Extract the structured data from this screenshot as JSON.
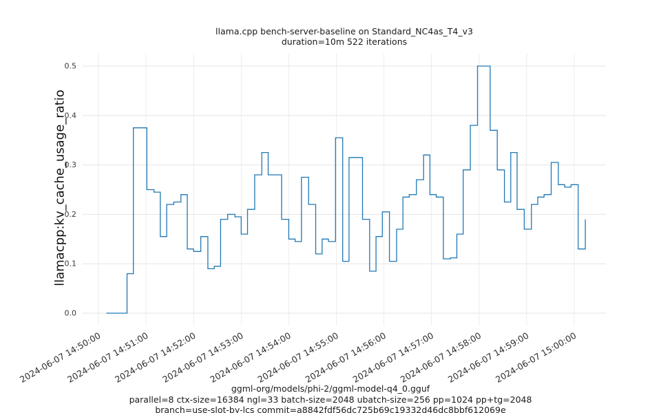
{
  "figure": {
    "title_line1": "llama.cpp bench-server-baseline on Standard_NC4as_T4_v3",
    "title_line2": "duration=10m 522 iterations",
    "ylabel": "llamacpp:kv_cache_usage_ratio",
    "footer_line1": "ggml-org/models/phi-2/ggml-model-q4_0.gguf",
    "footer_line2": "parallel=8 ctx-size=16384 ngl=33 batch-size=2048 ubatch-size=256 pp=1024 pp+tg=2048",
    "footer_line3": "branch=use-slot-by-lcs commit=a8842fdf56dc725b69c19332d46dc8bbf612069e"
  },
  "chart_data": {
    "type": "line",
    "step_style": "post",
    "title": "llama.cpp bench-server-baseline on Standard_NC4as_T4_v3 duration=10m 522 iterations",
    "xlabel": "",
    "ylabel": "llamacpp:kv_cache_usage_ratio",
    "line_color": "#1f77b4",
    "grid": true,
    "legend": "none",
    "ylim": [
      -0.025,
      0.525
    ],
    "xlim_seconds": [
      -20,
      640
    ],
    "y_ticks": [
      0.0,
      0.1,
      0.2,
      0.3,
      0.4,
      0.5
    ],
    "x_ticks": [
      {
        "t": 0,
        "label": "2024-06-07 14:50:00"
      },
      {
        "t": 60,
        "label": "2024-06-07 14:51:00"
      },
      {
        "t": 120,
        "label": "2024-06-07 14:52:00"
      },
      {
        "t": 180,
        "label": "2024-06-07 14:53:00"
      },
      {
        "t": 240,
        "label": "2024-06-07 14:54:00"
      },
      {
        "t": 300,
        "label": "2024-06-07 14:55:00"
      },
      {
        "t": 360,
        "label": "2024-06-07 14:56:00"
      },
      {
        "t": 420,
        "label": "2024-06-07 14:57:00"
      },
      {
        "t": 480,
        "label": "2024-06-07 14:58:00"
      },
      {
        "t": 540,
        "label": "2024-06-07 14:59:00"
      },
      {
        "t": 600,
        "label": "2024-06-07 15:00:00"
      }
    ],
    "x_seconds": [
      10,
      18,
      27,
      36,
      44,
      52,
      61,
      70,
      78,
      86,
      95,
      104,
      112,
      120,
      129,
      138,
      146,
      154,
      163,
      172,
      180,
      188,
      197,
      206,
      214,
      222,
      231,
      240,
      248,
      256,
      265,
      274,
      282,
      290,
      299,
      308,
      316,
      324,
      333,
      342,
      350,
      358,
      367,
      376,
      384,
      392,
      401,
      410,
      418,
      426,
      435,
      444,
      452,
      460,
      469,
      478,
      486,
      494,
      503,
      512,
      520,
      528,
      537,
      546,
      554,
      562,
      571,
      580,
      588,
      596,
      605,
      614
    ],
    "y_values": [
      0.0,
      0.0,
      0.0,
      0.08,
      0.375,
      0.375,
      0.25,
      0.245,
      0.155,
      0.22,
      0.225,
      0.24,
      0.13,
      0.125,
      0.155,
      0.09,
      0.095,
      0.19,
      0.2,
      0.195,
      0.16,
      0.21,
      0.28,
      0.325,
      0.28,
      0.28,
      0.19,
      0.15,
      0.145,
      0.275,
      0.22,
      0.12,
      0.15,
      0.145,
      0.355,
      0.105,
      0.315,
      0.315,
      0.19,
      0.085,
      0.155,
      0.205,
      0.105,
      0.17,
      0.235,
      0.24,
      0.27,
      0.32,
      0.24,
      0.235,
      0.11,
      0.112,
      0.16,
      0.29,
      0.38,
      0.5,
      0.5,
      0.37,
      0.29,
      0.225,
      0.325,
      0.21,
      0.17,
      0.22,
      0.235,
      0.24,
      0.305,
      0.26,
      0.255,
      0.26,
      0.13,
      0.19
    ]
  }
}
